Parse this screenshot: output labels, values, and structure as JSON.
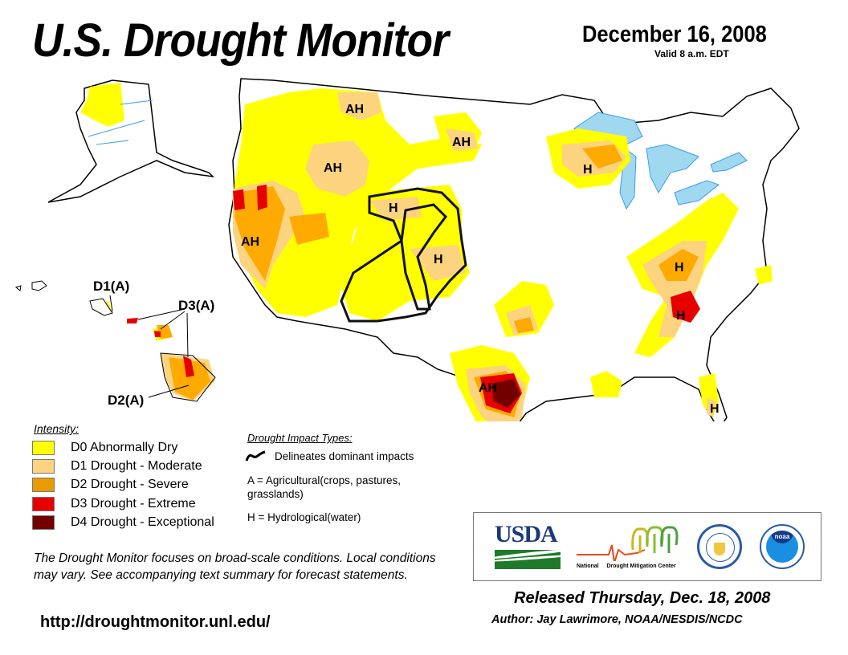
{
  "header": {
    "title": "U.S. Drought Monitor",
    "date": "December 16, 2008",
    "valid": "Valid 8 a.m. EDT"
  },
  "map": {
    "labels": {
      "ah_montana": "AH",
      "ah_north_dakota": "AH",
      "ah_idaho": "AH",
      "ah_california": "AH",
      "h_wyoming": "H",
      "h_colorado": "H",
      "h_wisconsin": "H",
      "h_appalachia": "H",
      "h_georgia": "H",
      "ah_texas": "AH",
      "h_florida": "H"
    },
    "hawaii_labels": {
      "oahu": "D1(A)",
      "maui_molokai": "D3(A)",
      "big_island": "D2(A)"
    }
  },
  "legend": {
    "intensity_title": "Intensity:",
    "items": [
      {
        "code": "D0",
        "label": "D0 Abnormally Dry",
        "color": "#ffff00"
      },
      {
        "code": "D1",
        "label": "D1 Drought - Moderate",
        "color": "#fcd37f"
      },
      {
        "code": "D2",
        "label": "D2 Drought - Severe",
        "color": "#ffaa00"
      },
      {
        "code": "D3",
        "label": "D3 Drought - Extreme",
        "color": "#e60000"
      },
      {
        "code": "D4",
        "label": "D4 Drought - Exceptional",
        "color": "#730000"
      }
    ],
    "impact_title": "Drought Impact Types:",
    "delineates": "Delineates dominant impacts",
    "agricultural": "A = Agricultural(crops, pastures, grasslands)",
    "hydrological": "H = Hydrological(water)"
  },
  "footer": {
    "disclaimer": "The Drought Monitor focuses on broad-scale conditions. Local conditions may vary. See accompanying text summary for forecast statements.",
    "url": "http://droughtmonitor.unl.edu/",
    "released": "Released Thursday, Dec. 18, 2008",
    "author": "Author: Jay Lawrimore, NOAA/NESDIS/NCDC"
  },
  "logos": {
    "usda": "USDA",
    "ndmc_left": "National",
    "ndmc_right": "Drought Mitigation Center",
    "noaa": "noaa"
  },
  "colors": {
    "water": "#a0d8f0",
    "river": "#3a9cf0",
    "usda_blue": "#1b3a7a",
    "usda_green": "#1f7a2a"
  }
}
